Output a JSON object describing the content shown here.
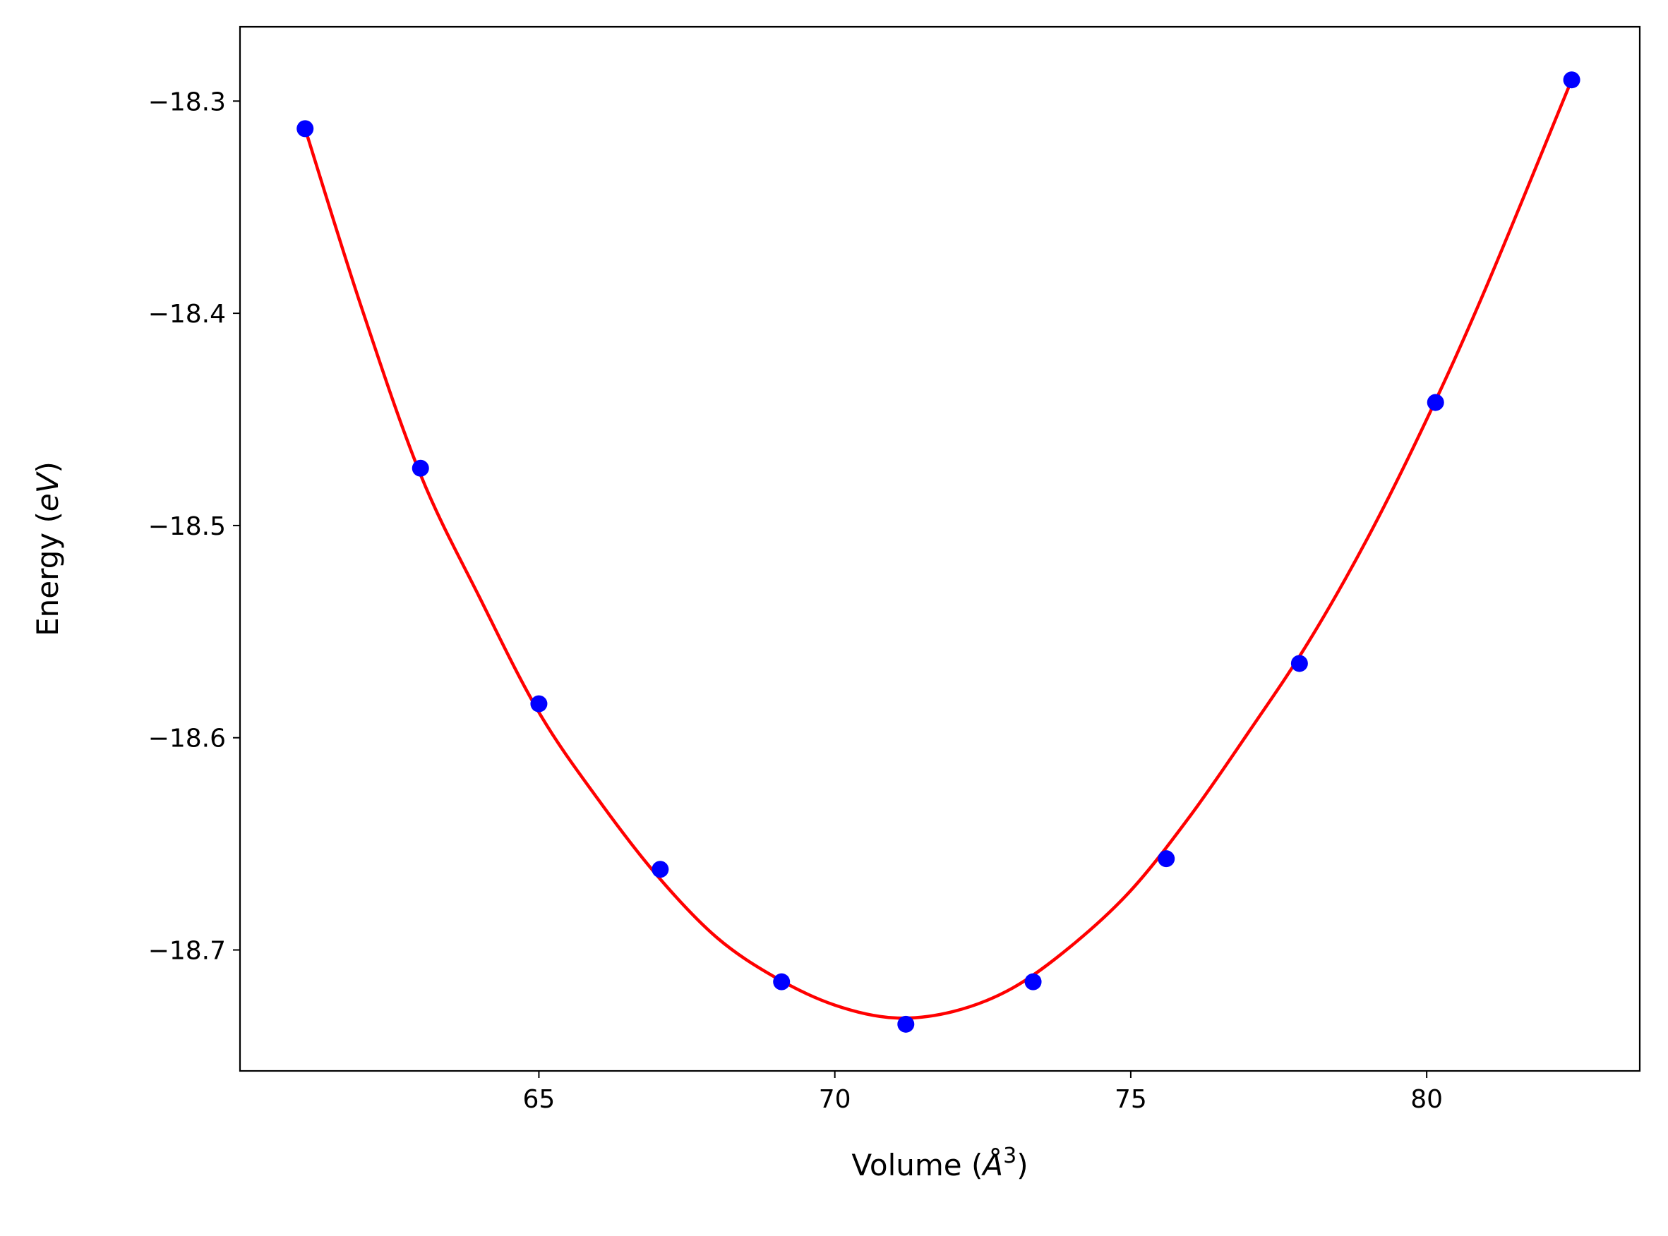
{
  "chart_data": {
    "type": "scatter",
    "title": "",
    "xlabel": "Volume (",
    "xlabel_math": "Å",
    "xlabel_sup": "3",
    "xlabel_end": ")",
    "ylabel": "Energy (",
    "ylabel_math": "eV",
    "ylabel_end": ")",
    "xlim": [
      59.95,
      83.6
    ],
    "ylim": [
      -18.757,
      -18.265
    ],
    "xticks": [
      65,
      70,
      75,
      80
    ],
    "xtick_labels": [
      "65",
      "70",
      "75",
      "80"
    ],
    "yticks": [
      -18.3,
      -18.4,
      -18.5,
      -18.6,
      -18.7
    ],
    "ytick_labels": [
      "−18.3",
      "−18.4",
      "−18.5",
      "−18.6",
      "−18.7"
    ],
    "grid": false,
    "legend": "none",
    "series": [
      {
        "kind": "scatter",
        "color": "#0000ff",
        "marker": "circle",
        "x": [
          61.05,
          63.0,
          65.0,
          67.05,
          69.1,
          71.2,
          73.35,
          75.6,
          77.85,
          80.15,
          82.45
        ],
        "y": [
          -18.313,
          -18.473,
          -18.584,
          -18.662,
          -18.715,
          -18.735,
          -18.715,
          -18.657,
          -18.565,
          -18.442,
          -18.29
        ]
      },
      {
        "kind": "line",
        "color": "#ff0000",
        "fit": "quartic",
        "x": [
          61.05,
          62.0,
          63.0,
          64.0,
          65.0,
          66.0,
          67.0,
          68.0,
          69.0,
          70.0,
          71.0,
          72.0,
          73.0,
          74.0,
          75.0,
          76.0,
          77.0,
          78.0,
          79.0,
          80.0,
          81.0,
          82.45
        ],
        "y": [
          -18.313,
          -18.397,
          -18.476,
          -18.534,
          -18.588,
          -18.629,
          -18.665,
          -18.694,
          -18.713,
          -18.726,
          -18.732,
          -18.729,
          -18.718,
          -18.698,
          -18.672,
          -18.637,
          -18.597,
          -18.555,
          -18.506,
          -18.45,
          -18.388,
          -18.29
        ]
      }
    ]
  }
}
